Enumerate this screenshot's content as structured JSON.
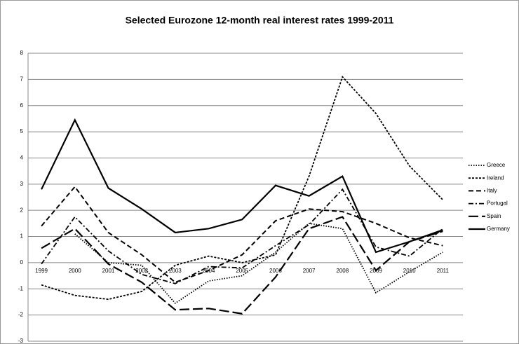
{
  "chart_data": {
    "type": "line",
    "title": "Selected Eurozone 12-month real interest rates 1999-2011",
    "categories": [
      "1999",
      "2000",
      "2001",
      "2002",
      "2003",
      "2004",
      "2005",
      "2006",
      "2007",
      "2008",
      "2009",
      "2010",
      "2011"
    ],
    "ylim": [
      -3,
      8
    ],
    "yticks": [
      -3,
      -2,
      -1,
      0,
      1,
      2,
      3,
      4,
      5,
      6,
      7,
      8
    ],
    "grid": true,
    "legend": "right",
    "series": [
      {
        "name": "Greece",
        "color": "#000000",
        "dash": "1.5,2",
        "width": 1.8,
        "values": [
          null,
          1.1,
          0.0,
          -0.1,
          -1.55,
          -0.7,
          -0.5,
          0.4,
          1.5,
          1.3,
          -1.15,
          -0.35,
          0.4
        ]
      },
      {
        "name": "Ireland",
        "color": "#000000",
        "dash": "3,2",
        "width": 1.8,
        "values": [
          -0.85,
          -1.25,
          -1.4,
          -1.1,
          -0.1,
          0.25,
          0.0,
          0.3,
          3.3,
          7.1,
          5.7,
          3.7,
          2.4
        ]
      },
      {
        "name": "Italy",
        "color": "#000000",
        "dash": "7,4",
        "width": 2,
        "values": [
          1.4,
          2.9,
          1.15,
          0.3,
          -0.75,
          -0.3,
          0.3,
          1.6,
          2.05,
          1.95,
          1.5,
          0.95,
          0.65
        ]
      },
      {
        "name": "Portugal",
        "color": "#000000",
        "dash": "7,3,2,3",
        "width": 1.8,
        "values": [
          -0.05,
          1.75,
          0.45,
          -0.45,
          -0.8,
          -0.15,
          -0.2,
          0.65,
          1.45,
          2.8,
          0.6,
          0.25,
          1.3
        ]
      },
      {
        "name": "Spain",
        "color": "#000000",
        "dash": "14,5",
        "width": 2.2,
        "values": [
          0.55,
          1.3,
          -0.05,
          -0.75,
          -1.8,
          -1.75,
          -1.95,
          -0.55,
          1.3,
          1.75,
          -0.3,
          0.8,
          1.2
        ]
      },
      {
        "name": "Germany",
        "color": "#000000",
        "dash": "",
        "width": 2.2,
        "values": [
          2.8,
          5.45,
          2.85,
          2.05,
          1.15,
          1.3,
          1.65,
          2.95,
          2.55,
          3.3,
          0.4,
          0.8,
          1.25
        ]
      }
    ]
  }
}
